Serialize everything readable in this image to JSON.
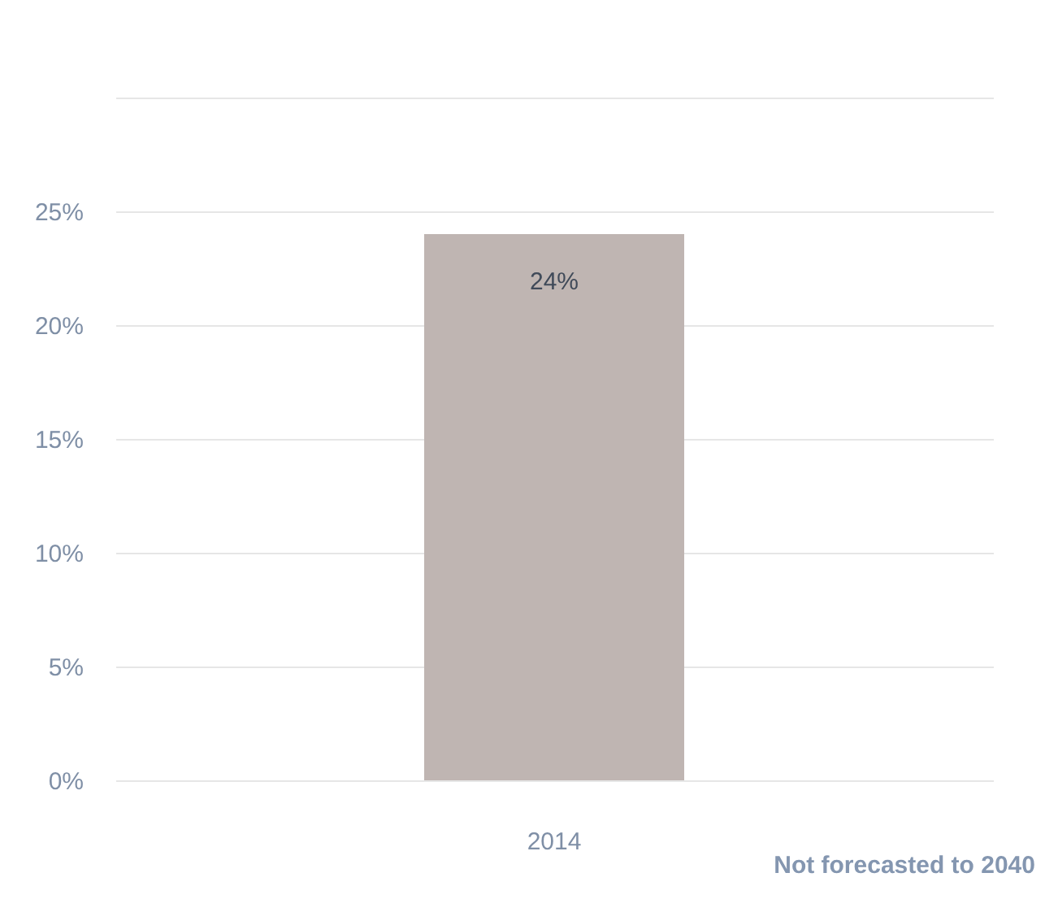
{
  "chart_data": {
    "type": "bar",
    "categories": [
      "2014"
    ],
    "values": [
      24
    ],
    "value_labels": [
      "24%"
    ],
    "color": "#bfb5b2",
    "ylim": [
      0,
      30
    ],
    "yticks": [
      {
        "value": 0,
        "label": "0%"
      },
      {
        "value": 5,
        "label": "5%"
      },
      {
        "value": 10,
        "label": "10%"
      },
      {
        "value": 15,
        "label": "15%"
      },
      {
        "value": 20,
        "label": "20%"
      },
      {
        "value": 25,
        "label": "25%"
      },
      {
        "value": 30,
        "label": null
      }
    ],
    "grid": true,
    "annotations": [
      "Not forecasted to 2040"
    ]
  }
}
